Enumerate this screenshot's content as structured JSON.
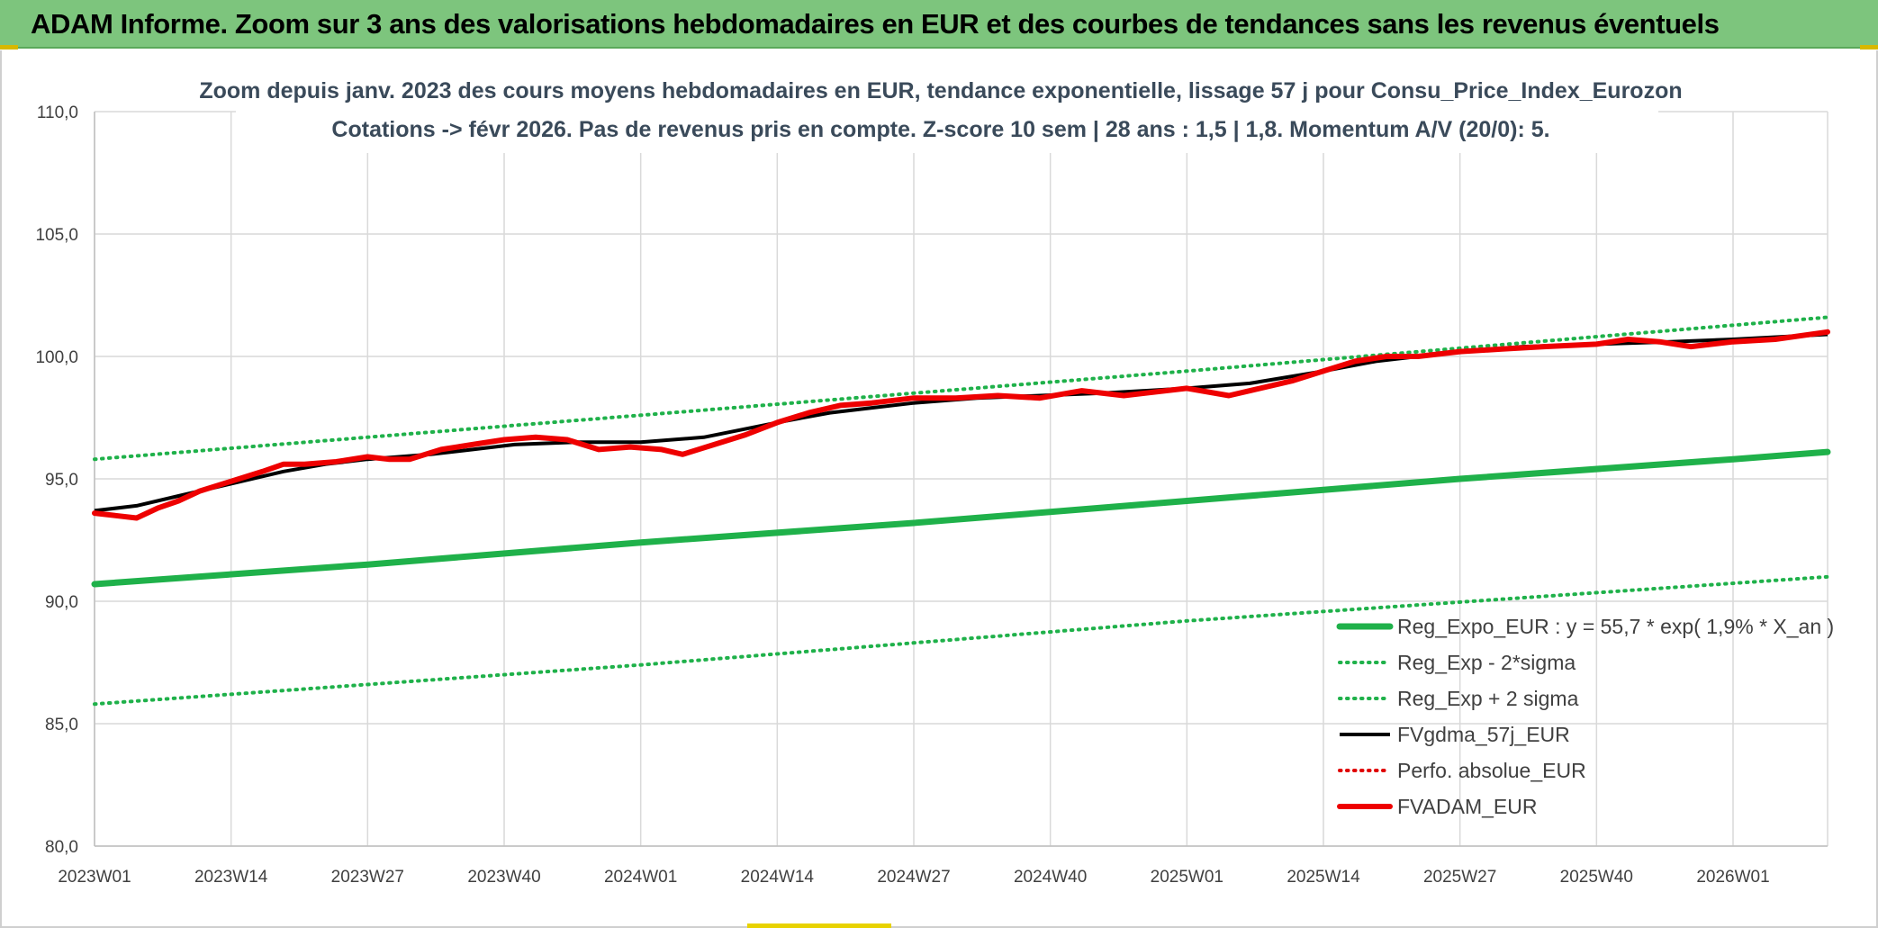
{
  "banner": {
    "title": "ADAM Informe. Zoom sur 3 ans des valorisations hebdomadaires en EUR et des courbes de tendances sans les revenus éventuels"
  },
  "colors": {
    "banner_bg": "#7dc57d",
    "reg_expo": "#1fb14a",
    "fvgdma": "#000000",
    "perfo": "#e00000",
    "fvadam": "#ee0000",
    "grid": "#d9d9d9"
  },
  "chart_data": {
    "type": "line",
    "title_lines": [
      "Zoom depuis janv. 2023 des cours moyens hebdomadaires en EUR, tendance exponentielle, lissage 57 j pour Consu_Price_Index_Eurozon",
      "Cotations -> févr 2026. Pas de revenus pris en compte. Z-score 10 sem | 28 ans : 1,5 | 1,8. Momentum A/V (20/0): 5."
    ],
    "x_tick_labels": [
      "2023W01",
      "2023W14",
      "2023W27",
      "2023W40",
      "2024W01",
      "2024W14",
      "2024W27",
      "2024W40",
      "2025W01",
      "2025W14",
      "2025W27",
      "2025W40",
      "2026W01"
    ],
    "x_tick_index": [
      0,
      13,
      26,
      39,
      52,
      65,
      78,
      91,
      104,
      117,
      130,
      143,
      156
    ],
    "x_max_index": 165,
    "y_tick_labels": [
      "80,0",
      "85,0",
      "90,0",
      "95,0",
      "100,0",
      "105,0",
      "110,0"
    ],
    "ylim": [
      80,
      110
    ],
    "y_step": 5,
    "grid": true,
    "legend_position": "bottom-right",
    "series": [
      {
        "name": "Reg_Expo_EUR : y = 55,7 * exp( 1,9% *  X_an )",
        "style": "solid-thick",
        "color": "#1fb14a",
        "points": [
          [
            0,
            90.7
          ],
          [
            26,
            91.5
          ],
          [
            52,
            92.4
          ],
          [
            78,
            93.2
          ],
          [
            104,
            94.1
          ],
          [
            130,
            95.0
          ],
          [
            156,
            95.8
          ],
          [
            165,
            96.1
          ]
        ]
      },
      {
        "name": "Reg_Exp - 2*sigma",
        "style": "dotted",
        "color": "#1fb14a",
        "points": [
          [
            0,
            85.8
          ],
          [
            52,
            87.4
          ],
          [
            104,
            89.2
          ],
          [
            165,
            91.0
          ]
        ]
      },
      {
        "name": "Reg_Exp + 2 sigma",
        "style": "dotted",
        "color": "#1fb14a",
        "points": [
          [
            0,
            95.8
          ],
          [
            52,
            97.6
          ],
          [
            104,
            99.4
          ],
          [
            165,
            101.6
          ]
        ]
      },
      {
        "name": "FVgdma_57j_EUR",
        "style": "solid",
        "color": "#000000",
        "points": [
          [
            0,
            93.7
          ],
          [
            4,
            93.9
          ],
          [
            8,
            94.3
          ],
          [
            13,
            94.8
          ],
          [
            18,
            95.3
          ],
          [
            22,
            95.6
          ],
          [
            26,
            95.8
          ],
          [
            32,
            96.0
          ],
          [
            36,
            96.2
          ],
          [
            40,
            96.4
          ],
          [
            46,
            96.5
          ],
          [
            52,
            96.5
          ],
          [
            58,
            96.7
          ],
          [
            65,
            97.3
          ],
          [
            70,
            97.7
          ],
          [
            74,
            97.9
          ],
          [
            78,
            98.1
          ],
          [
            84,
            98.3
          ],
          [
            90,
            98.4
          ],
          [
            96,
            98.5
          ],
          [
            100,
            98.6
          ],
          [
            104,
            98.7
          ],
          [
            110,
            98.9
          ],
          [
            117,
            99.4
          ],
          [
            122,
            99.8
          ],
          [
            126,
            100.0
          ],
          [
            130,
            100.2
          ],
          [
            136,
            100.4
          ],
          [
            143,
            100.5
          ],
          [
            150,
            100.6
          ],
          [
            156,
            100.7
          ],
          [
            165,
            100.9
          ]
        ]
      },
      {
        "name": "Perfo. absolue_EUR",
        "style": "dotted",
        "color": "#e00000",
        "points": []
      },
      {
        "name": "FVADAM_EUR",
        "style": "solid-thick",
        "color": "#ee0000",
        "points": [
          [
            0,
            93.6
          ],
          [
            2,
            93.5
          ],
          [
            4,
            93.4
          ],
          [
            6,
            93.8
          ],
          [
            8,
            94.1
          ],
          [
            10,
            94.5
          ],
          [
            13,
            94.9
          ],
          [
            16,
            95.3
          ],
          [
            18,
            95.6
          ],
          [
            20,
            95.6
          ],
          [
            23,
            95.7
          ],
          [
            26,
            95.9
          ],
          [
            28,
            95.8
          ],
          [
            30,
            95.8
          ],
          [
            33,
            96.2
          ],
          [
            36,
            96.4
          ],
          [
            39,
            96.6
          ],
          [
            42,
            96.7
          ],
          [
            45,
            96.6
          ],
          [
            48,
            96.2
          ],
          [
            51,
            96.3
          ],
          [
            54,
            96.2
          ],
          [
            56,
            96.0
          ],
          [
            59,
            96.4
          ],
          [
            62,
            96.8
          ],
          [
            65,
            97.3
          ],
          [
            68,
            97.7
          ],
          [
            71,
            98.0
          ],
          [
            74,
            98.1
          ],
          [
            78,
            98.3
          ],
          [
            82,
            98.3
          ],
          [
            86,
            98.4
          ],
          [
            90,
            98.3
          ],
          [
            94,
            98.6
          ],
          [
            98,
            98.4
          ],
          [
            100,
            98.5
          ],
          [
            104,
            98.7
          ],
          [
            108,
            98.4
          ],
          [
            110,
            98.6
          ],
          [
            114,
            99.0
          ],
          [
            117,
            99.4
          ],
          [
            120,
            99.8
          ],
          [
            123,
            100.0
          ],
          [
            126,
            100.0
          ],
          [
            130,
            100.2
          ],
          [
            134,
            100.3
          ],
          [
            138,
            100.4
          ],
          [
            143,
            100.5
          ],
          [
            146,
            100.7
          ],
          [
            149,
            100.6
          ],
          [
            152,
            100.4
          ],
          [
            156,
            100.6
          ],
          [
            160,
            100.7
          ],
          [
            165,
            101.0
          ]
        ]
      }
    ]
  }
}
